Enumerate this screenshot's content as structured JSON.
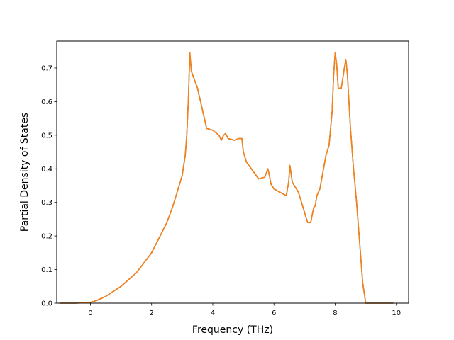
{
  "chart_data": {
    "type": "line",
    "title": "",
    "xlabel": "Frequency (THz)",
    "ylabel": "Partial Density of States",
    "xlim": [
      -1.1,
      10.4
    ],
    "ylim": [
      0.0,
      0.78
    ],
    "xticks": [
      0,
      2,
      4,
      6,
      8,
      10
    ],
    "yticks": [
      0.0,
      0.1,
      0.2,
      0.3,
      0.4,
      0.5,
      0.6,
      0.7
    ],
    "xtick_labels": [
      "0",
      "2",
      "4",
      "6",
      "8",
      "10"
    ],
    "ytick_labels": [
      "0.0",
      "0.1",
      "0.2",
      "0.3",
      "0.4",
      "0.5",
      "0.6",
      "0.7"
    ],
    "grid": false,
    "legend": false,
    "series": [
      {
        "color": "#1f77b4",
        "x": [
          -1.0,
          -0.5,
          0.0,
          0.2,
          0.5,
          1.0,
          1.5,
          2.0,
          2.5,
          2.7,
          3.0,
          3.1,
          3.15,
          3.2,
          3.25,
          3.3,
          3.5,
          3.6,
          3.7,
          3.8,
          4.0,
          4.2,
          4.28,
          4.35,
          4.42,
          4.5,
          4.7,
          4.85,
          4.95,
          5.0,
          5.1,
          5.3,
          5.5,
          5.7,
          5.8,
          5.85,
          5.9,
          6.0,
          6.2,
          6.4,
          6.48,
          6.52,
          6.6,
          6.8,
          7.0,
          7.1,
          7.2,
          7.3,
          7.35,
          7.4,
          7.5,
          7.6,
          7.7,
          7.8,
          7.9,
          7.95,
          8.0,
          8.05,
          8.1,
          8.2,
          8.3,
          8.35,
          8.4,
          8.5,
          8.6,
          8.7,
          8.8,
          8.9,
          9.0,
          9.5,
          9.9
        ],
        "y": [
          0.0,
          0.0,
          0.002,
          0.008,
          0.02,
          0.05,
          0.09,
          0.15,
          0.24,
          0.29,
          0.38,
          0.44,
          0.5,
          0.6,
          0.745,
          0.69,
          0.64,
          0.6,
          0.56,
          0.52,
          0.515,
          0.5,
          0.485,
          0.5,
          0.505,
          0.49,
          0.485,
          0.49,
          0.49,
          0.45,
          0.42,
          0.395,
          0.37,
          0.375,
          0.4,
          0.38,
          0.355,
          0.34,
          0.33,
          0.32,
          0.36,
          0.41,
          0.36,
          0.33,
          0.27,
          0.24,
          0.24,
          0.285,
          0.29,
          0.32,
          0.34,
          0.39,
          0.44,
          0.47,
          0.57,
          0.68,
          0.745,
          0.71,
          0.64,
          0.64,
          0.7,
          0.725,
          0.68,
          0.52,
          0.4,
          0.3,
          0.18,
          0.06,
          0.0,
          0.0,
          0.0
        ]
      },
      {
        "color": "#ff7f0e",
        "x": [
          -1.0,
          -0.5,
          0.0,
          0.2,
          0.5,
          1.0,
          1.5,
          2.0,
          2.5,
          2.7,
          3.0,
          3.1,
          3.15,
          3.2,
          3.25,
          3.3,
          3.5,
          3.6,
          3.7,
          3.8,
          4.0,
          4.2,
          4.28,
          4.35,
          4.42,
          4.5,
          4.7,
          4.85,
          4.95,
          5.0,
          5.1,
          5.3,
          5.5,
          5.7,
          5.8,
          5.85,
          5.9,
          6.0,
          6.2,
          6.4,
          6.48,
          6.52,
          6.6,
          6.8,
          7.0,
          7.1,
          7.2,
          7.3,
          7.35,
          7.4,
          7.5,
          7.6,
          7.7,
          7.8,
          7.9,
          7.95,
          8.0,
          8.05,
          8.1,
          8.2,
          8.3,
          8.35,
          8.4,
          8.5,
          8.6,
          8.7,
          8.8,
          8.9,
          9.0,
          9.5,
          9.9
        ],
        "y": [
          0.0,
          0.0,
          0.002,
          0.008,
          0.02,
          0.05,
          0.09,
          0.15,
          0.24,
          0.29,
          0.38,
          0.44,
          0.5,
          0.6,
          0.745,
          0.69,
          0.64,
          0.6,
          0.56,
          0.52,
          0.515,
          0.5,
          0.485,
          0.5,
          0.505,
          0.49,
          0.485,
          0.49,
          0.49,
          0.45,
          0.42,
          0.395,
          0.37,
          0.375,
          0.4,
          0.38,
          0.355,
          0.34,
          0.33,
          0.32,
          0.36,
          0.41,
          0.36,
          0.33,
          0.27,
          0.24,
          0.24,
          0.285,
          0.29,
          0.32,
          0.34,
          0.39,
          0.44,
          0.47,
          0.57,
          0.68,
          0.745,
          0.71,
          0.64,
          0.64,
          0.7,
          0.725,
          0.68,
          0.52,
          0.4,
          0.3,
          0.18,
          0.06,
          0.0,
          0.0,
          0.0
        ]
      }
    ]
  }
}
